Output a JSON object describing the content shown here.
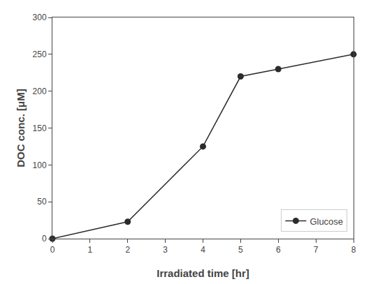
{
  "chart_data": {
    "type": "line",
    "x": [
      0,
      2,
      4,
      5,
      6,
      8
    ],
    "series": [
      {
        "name": "Glucose",
        "color": "#2b2b2b",
        "values": [
          0,
          23,
          125,
          220,
          230,
          250
        ]
      }
    ],
    "xlabel": "Irradiated time [hr]",
    "ylabel": "DOC conc. [μM]",
    "xlim": [
      0,
      8
    ],
    "ylim": [
      0,
      300
    ],
    "xticks": [
      0,
      1,
      2,
      3,
      4,
      5,
      6,
      7,
      8
    ],
    "yticks": [
      0,
      50,
      100,
      150,
      200,
      250,
      300
    ],
    "marker": "circle",
    "grid": false,
    "legend": "lower right"
  }
}
